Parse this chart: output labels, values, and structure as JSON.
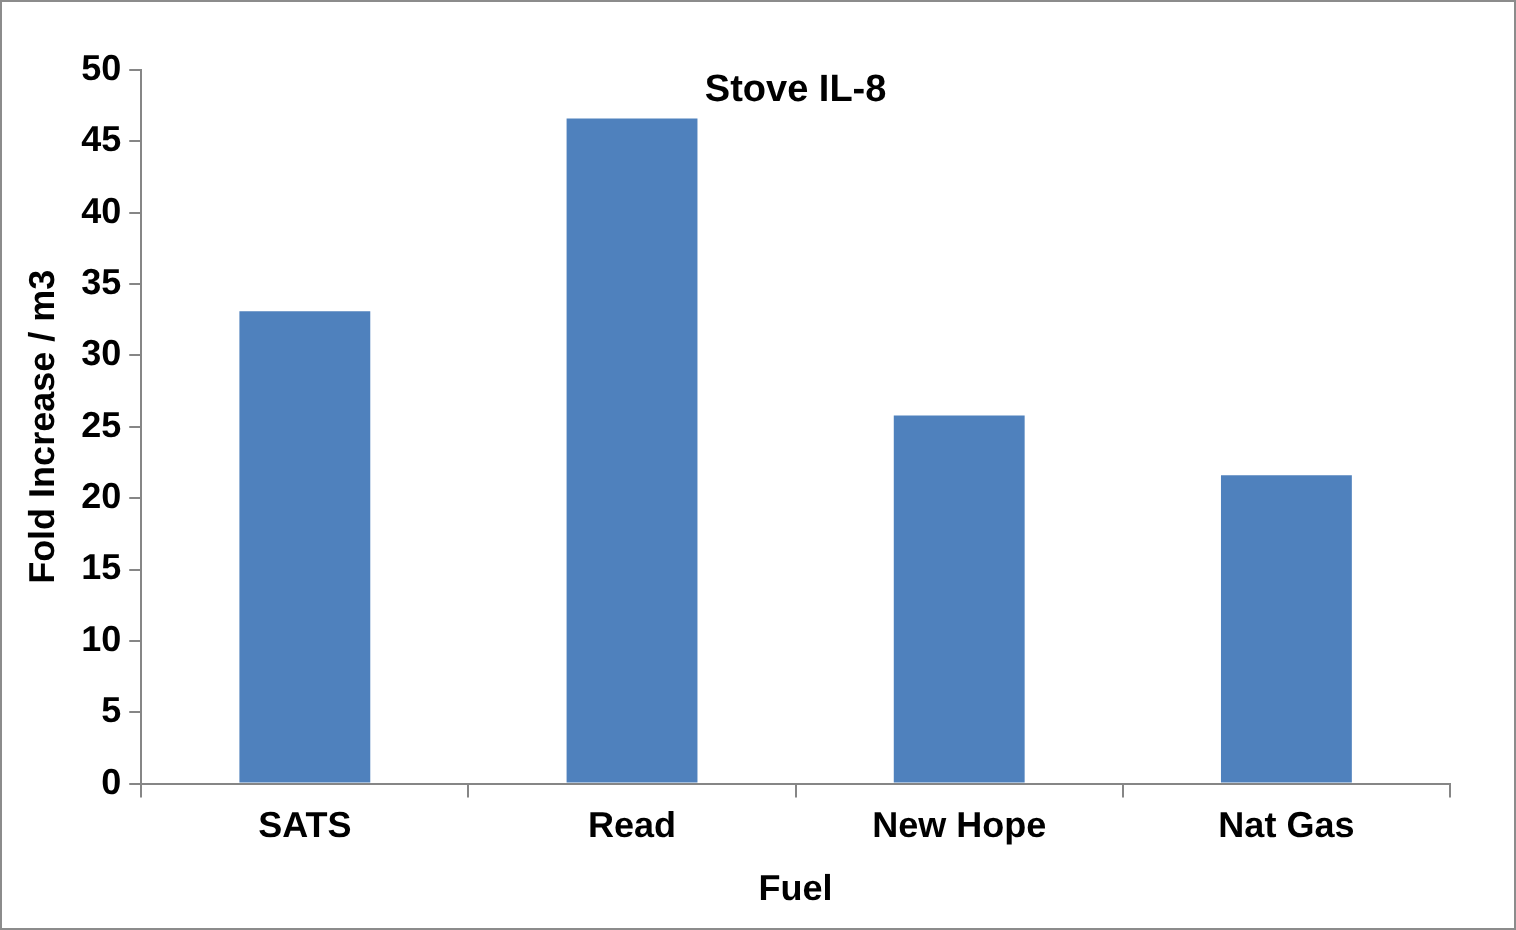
{
  "chart_data": {
    "type": "bar",
    "title": "Stove IL-8",
    "xlabel": "Fuel",
    "ylabel": "Fold Increase / m3",
    "categories": [
      "SATS",
      "Read",
      "New Hope",
      "Nat Gas"
    ],
    "values": [
      33.1,
      46.6,
      25.8,
      21.6
    ],
    "color": "#4f81bd",
    "ylim": [
      0,
      50
    ],
    "yticks": [
      0,
      5,
      10,
      15,
      20,
      25,
      30,
      35,
      40,
      45,
      50
    ],
    "grid": false,
    "legend": false
  }
}
